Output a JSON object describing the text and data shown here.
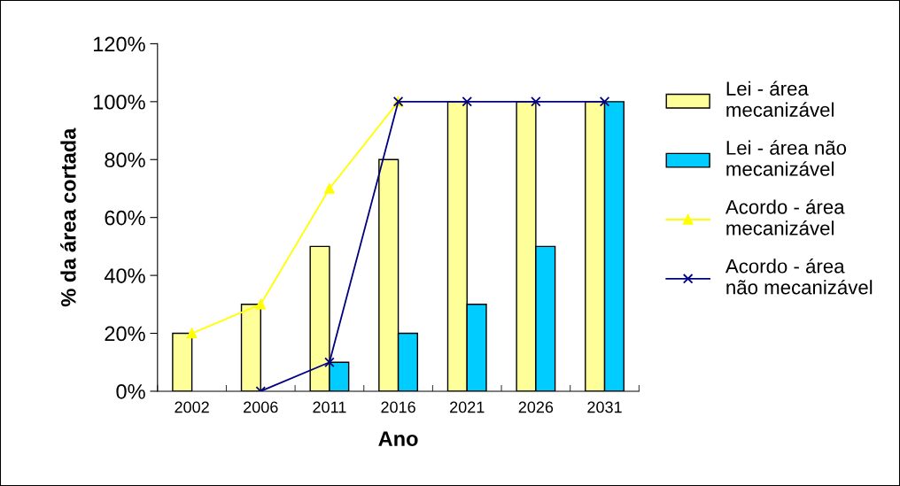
{
  "chart_data": {
    "type": "bar",
    "xlabel": "Ano",
    "ylabel": "% da área cortada",
    "categories": [
      "2002",
      "2006",
      "2011",
      "2016",
      "2021",
      "2026",
      "2031"
    ],
    "series": [
      {
        "name": "Lei - área mecanizável",
        "color": "#ffff99",
        "values": [
          20,
          30,
          50,
          80,
          100,
          100,
          100
        ]
      },
      {
        "name": "Lei - área não mecanizável",
        "color": "#00ccff",
        "values": [
          null,
          null,
          10,
          20,
          30,
          50,
          100
        ]
      },
      {
        "name": "Acordo - área mecanizável",
        "type": "line",
        "color": "#ffff00",
        "marker": "triangle",
        "values": [
          20,
          30,
          70,
          100,
          null,
          null,
          null
        ]
      },
      {
        "name": "Acordo - área não mecanizável",
        "type": "line",
        "color": "#000080",
        "marker": "cross",
        "values": [
          null,
          0,
          10,
          100,
          100,
          100,
          100
        ]
      }
    ],
    "ylim": [
      0,
      120
    ],
    "yticks": [
      {
        "value": 0,
        "label": "0%"
      },
      {
        "value": 20,
        "label": "20%"
      },
      {
        "value": 40,
        "label": "40%"
      },
      {
        "value": 60,
        "label": "60%"
      },
      {
        "value": 80,
        "label": "80%"
      },
      {
        "value": 100,
        "label": "100%"
      },
      {
        "value": 120,
        "label": "120%"
      }
    ],
    "grid": false,
    "legend": "right",
    "line_style": "solid"
  }
}
